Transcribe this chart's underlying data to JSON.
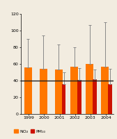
{
  "years": [
    "1999",
    "2000",
    "2001",
    "2002",
    "2003",
    "2004"
  ],
  "no2_values": [
    56,
    54,
    53,
    57,
    60,
    57
  ],
  "pm10_values": [
    0,
    0,
    36,
    41,
    42,
    36
  ],
  "no2_errors_upper": [
    34,
    40,
    30,
    23,
    47,
    53
  ],
  "pm10_errors_upper": [
    0,
    0,
    14,
    14,
    11,
    18
  ],
  "no2_color": "#FF7700",
  "pm10_color": "#CC1100",
  "hline_y": 40,
  "hline_color": "#222222",
  "ylim": [
    0,
    120
  ],
  "yticks": [
    0,
    20,
    40,
    60,
    80,
    100,
    120
  ],
  "no2_bar_width": 0.5,
  "pm10_bar_width": 0.25,
  "background_color": "#f2ece0",
  "legend_no2": "NO₂",
  "legend_pm10": "PM₁₀",
  "error_color": "#888888"
}
